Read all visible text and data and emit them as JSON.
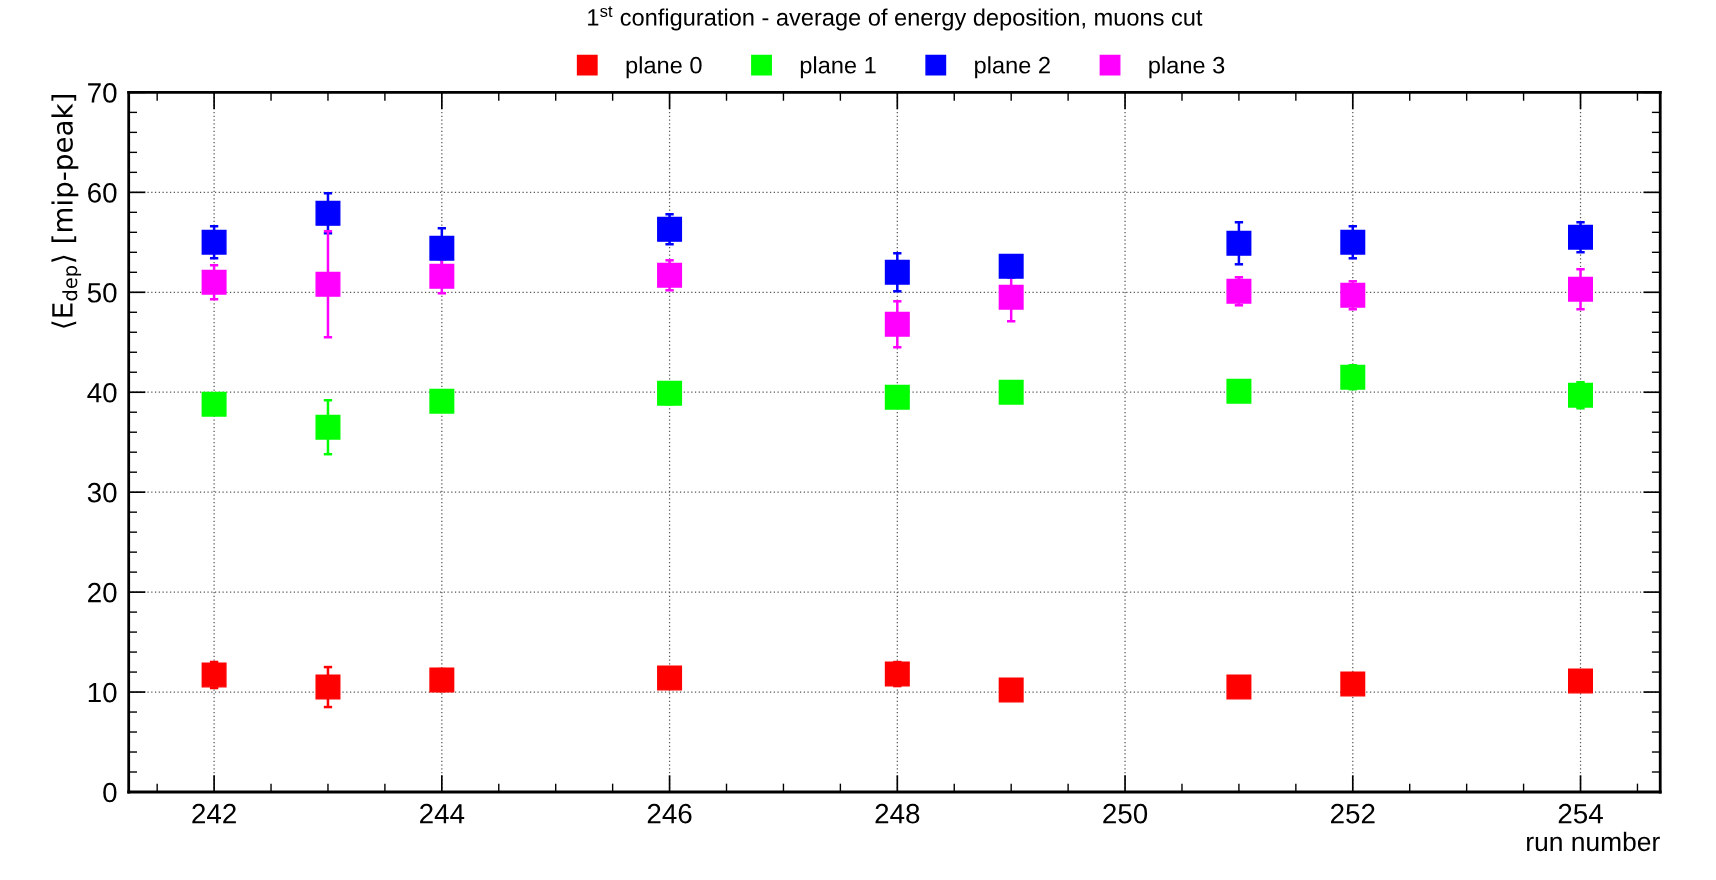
{
  "chart_data": {
    "type": "scatter",
    "title": "1$^{st}$ configuration - average of energy deposition, muons cut",
    "xlabel": "run number",
    "ylabel": "⟨E$_{dep}$⟩ [mip-peak]",
    "x": [
      242,
      243,
      244,
      246,
      248,
      249,
      251,
      252,
      254
    ],
    "series": [
      {
        "name": "plane 0",
        "color": "#ff0000",
        "values": [
          11.7,
          10.5,
          11.2,
          11.4,
          11.8,
          10.2,
          10.5,
          10.8,
          11.1
        ],
        "errors": [
          1.3,
          2.0,
          1.1,
          1.0,
          1.2,
          0.9,
          0.9,
          0.8,
          0.9
        ]
      },
      {
        "name": "plane 1",
        "color": "#00ff00",
        "values": [
          38.8,
          36.5,
          39.1,
          39.9,
          39.5,
          40.0,
          40.1,
          41.5,
          39.7
        ],
        "errors": [
          0.5,
          2.7,
          0.4,
          1.1,
          1.0,
          0.6,
          0.8,
          1.2,
          1.3
        ]
      },
      {
        "name": "plane 2",
        "color": "#0000ff",
        "values": [
          55.0,
          57.9,
          54.4,
          56.3,
          52.0,
          52.6,
          54.9,
          55.0,
          55.5
        ],
        "errors": [
          1.6,
          2.0,
          2.0,
          1.5,
          1.9,
          1.1,
          2.1,
          1.6,
          1.5
        ]
      },
      {
        "name": "plane 3",
        "color": "#ff00ff",
        "values": [
          51.0,
          50.8,
          51.6,
          51.7,
          46.8,
          49.5,
          50.1,
          49.7,
          50.3
        ],
        "errors": [
          1.7,
          5.3,
          1.7,
          1.5,
          2.3,
          2.4,
          1.4,
          1.4,
          2.0
        ]
      }
    ],
    "xlim": [
      241.25,
      254.7
    ],
    "xticks": [
      242,
      244,
      246,
      248,
      250,
      252,
      254
    ],
    "ylim": [
      0,
      70
    ],
    "yticks": [
      0,
      10,
      20,
      30,
      40,
      50,
      60,
      70
    ],
    "grid": true,
    "legend": "top",
    "marker": "square"
  }
}
